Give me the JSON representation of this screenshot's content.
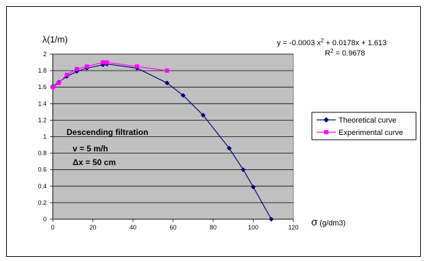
{
  "chart_data": {
    "type": "scatter",
    "xlabel_symbol": "σ",
    "xlabel_unit": " (g/dm3)",
    "ylabel": "λ(1/m)",
    "xlim": [
      0,
      120
    ],
    "ylim": [
      0,
      2
    ],
    "x_ticks": [
      "0",
      "20",
      "40",
      "60",
      "80",
      "100",
      "120"
    ],
    "y_ticks": [
      "0",
      "0.2",
      "0.4",
      "0.6",
      "0.8",
      "1",
      "1.2",
      "1.4",
      "1.6",
      "1.8",
      "2"
    ],
    "grid": true,
    "plot_background": "#c0c0c0",
    "legend_position": "right",
    "series": [
      {
        "name": "Theoretical curve",
        "color": "#000080",
        "marker": "diamond",
        "points": [
          [
            0,
            1.61
          ],
          [
            3,
            1.66
          ],
          [
            7,
            1.73
          ],
          [
            12,
            1.79
          ],
          [
            17,
            1.83
          ],
          [
            25,
            1.87
          ],
          [
            27,
            1.88
          ],
          [
            42,
            1.83
          ],
          [
            57,
            1.65
          ],
          [
            65,
            1.5
          ],
          [
            75,
            1.26
          ],
          [
            88,
            0.86
          ],
          [
            95,
            0.6
          ],
          [
            100,
            0.39
          ],
          [
            109,
            0.0
          ]
        ]
      },
      {
        "name": "Experimental curve",
        "color": "#ff00ff",
        "marker": "square",
        "points": [
          [
            0,
            1.6
          ],
          [
            3,
            1.65
          ],
          [
            7,
            1.75
          ],
          [
            12,
            1.82
          ],
          [
            17,
            1.85
          ],
          [
            25,
            1.9
          ],
          [
            27,
            1.9
          ],
          [
            42,
            1.85
          ],
          [
            57,
            1.8
          ]
        ]
      }
    ],
    "annotations": {
      "text_lines": [
        "Descending filtration",
        "v = 5 m/h",
        "Δx = 50 cm"
      ],
      "equation": "y = -0.0003  x",
      "equation_exp": "2",
      "equation_rest": " + 0.0178x + 1.613",
      "r_squared": "R",
      "r_squared_exp": "2",
      "r_squared_rest": " = 0.9678"
    }
  }
}
